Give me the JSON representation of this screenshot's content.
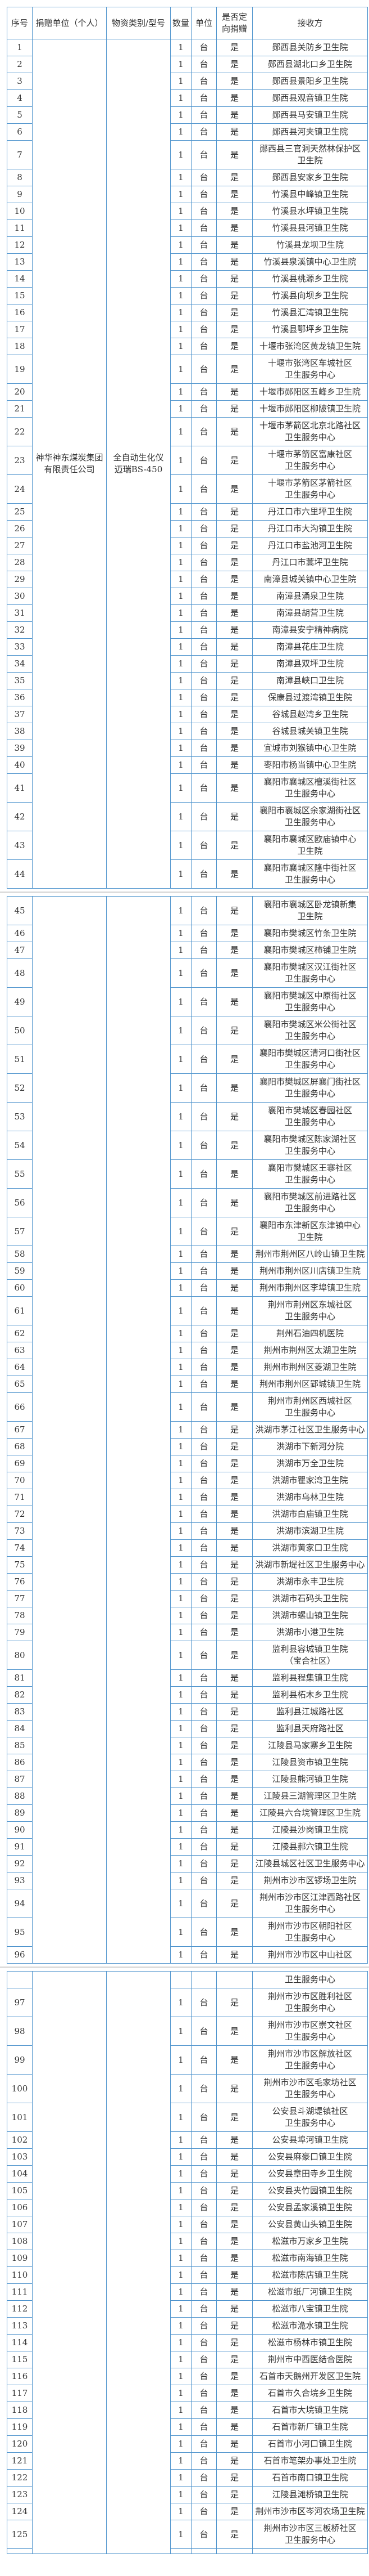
{
  "colors": {
    "table_border": "#4f94cd",
    "separator_line": "#dcdcdc",
    "text": "#333333",
    "cell_background": "#ffffff"
  },
  "table": {
    "headers": [
      "序号",
      "捐赠单位（个人）",
      "物资类别/型号",
      "数量",
      "单位",
      "是否定\n向捐赠",
      "接收方"
    ],
    "row_fields": [
      "serial",
      "quantity",
      "unit",
      "directed",
      "recipient"
    ],
    "sections": [
      {
        "donor": "神华神东煤炭集团\n有限责任公司",
        "material": "全自动生化仪\n迈瑞BS-450",
        "rows": [
          [
            "1",
            "1",
            "台",
            "是",
            "郧西县关防乡卫生院"
          ],
          [
            "2",
            "1",
            "台",
            "是",
            "郧西县湖北口乡卫生院"
          ],
          [
            "3",
            "1",
            "台",
            "是",
            "郧西县景阳乡卫生院"
          ],
          [
            "4",
            "1",
            "台",
            "是",
            "郧西县观音镇卫生院"
          ],
          [
            "5",
            "1",
            "台",
            "是",
            "郧西县马安镇卫生院"
          ],
          [
            "6",
            "1",
            "台",
            "是",
            "郧西县河夹镇卫生院"
          ],
          [
            "7",
            "1",
            "台",
            "是",
            "郧西县三官洞天然林保护区\n卫生院"
          ],
          [
            "8",
            "1",
            "台",
            "是",
            "郧西县安家乡卫生院"
          ],
          [
            "9",
            "1",
            "台",
            "是",
            "竹溪县中峰镇卫生院"
          ],
          [
            "10",
            "1",
            "台",
            "是",
            "竹溪县水坪镇卫生院"
          ],
          [
            "11",
            "1",
            "台",
            "是",
            "竹溪县县河镇卫生院"
          ],
          [
            "12",
            "1",
            "台",
            "是",
            "竹溪县龙坝卫生院"
          ],
          [
            "13",
            "1",
            "台",
            "是",
            "竹溪县泉溪镇中心卫生院"
          ],
          [
            "14",
            "1",
            "台",
            "是",
            "竹溪县桃源乡卫生院"
          ],
          [
            "15",
            "1",
            "台",
            "是",
            "竹溪县向坝乡卫生院"
          ],
          [
            "16",
            "1",
            "台",
            "是",
            "竹溪县汇湾镇卫生院"
          ],
          [
            "17",
            "1",
            "台",
            "是",
            "竹溪县鄂坪乡卫生院"
          ],
          [
            "18",
            "1",
            "台",
            "是",
            "十堰市张湾区黄龙镇卫生院"
          ],
          [
            "19",
            "1",
            "台",
            "是",
            "十堰市张湾区车城社区\n卫生服务中心"
          ],
          [
            "20",
            "1",
            "台",
            "是",
            "十堰市郧阳区五峰乡卫生院"
          ],
          [
            "21",
            "1",
            "台",
            "是",
            "十堰市郧阳区柳陂镇卫生院"
          ],
          [
            "22",
            "1",
            "台",
            "是",
            "十堰市茅箭区北京北路社区\n卫生服务中心"
          ],
          [
            "23",
            "1",
            "台",
            "是",
            "十堰市茅箭区富康社区\n卫生服务中心"
          ],
          [
            "24",
            "1",
            "台",
            "是",
            "十堰市茅箭区茅箭社区\n卫生服务中心"
          ],
          [
            "25",
            "1",
            "台",
            "是",
            "丹江口市六里坪卫生院"
          ],
          [
            "26",
            "1",
            "台",
            "是",
            "丹江口市大沟镇卫生院"
          ],
          [
            "27",
            "1",
            "台",
            "是",
            "丹江口市盐池河卫生院"
          ],
          [
            "28",
            "1",
            "台",
            "是",
            "丹江口市蒿坪卫生院"
          ],
          [
            "29",
            "1",
            "台",
            "是",
            "南漳县城关镇中心卫生院"
          ],
          [
            "30",
            "1",
            "台",
            "是",
            "南漳县涌泉卫生院"
          ],
          [
            "31",
            "1",
            "台",
            "是",
            "南漳县胡营卫生院"
          ],
          [
            "32",
            "1",
            "台",
            "是",
            "南漳县安宁精神病院"
          ],
          [
            "33",
            "1",
            "台",
            "是",
            "南漳县花庄卫生院"
          ],
          [
            "34",
            "1",
            "台",
            "是",
            "南漳县双坪卫生院"
          ],
          [
            "35",
            "1",
            "台",
            "是",
            "南漳县峡口卫生院"
          ],
          [
            "36",
            "1",
            "台",
            "是",
            "保康县过渡湾镇卫生院"
          ],
          [
            "37",
            "1",
            "台",
            "是",
            "谷城县赵湾乡卫生院"
          ],
          [
            "38",
            "1",
            "台",
            "是",
            "谷城县城关镇卫生院"
          ],
          [
            "39",
            "1",
            "台",
            "是",
            "宜城市刘猴镇中心卫生院"
          ],
          [
            "40",
            "1",
            "台",
            "是",
            "枣阳市杨当镇中心卫生院"
          ],
          [
            "41",
            "1",
            "台",
            "是",
            "襄阳市襄城区檀溪街社区\n卫生服务中心"
          ],
          [
            "42",
            "1",
            "台",
            "是",
            "襄阳市襄城区余家湖街社区\n卫生服务中心"
          ],
          [
            "43",
            "1",
            "台",
            "是",
            "襄阳市襄城区欧庙镇中心\n卫生院"
          ],
          [
            "44",
            "1",
            "台",
            "是",
            "襄阳市襄城区隆中街社区\n卫生服务中心"
          ]
        ]
      },
      {
        "donor": "",
        "material": "",
        "rows": [
          [
            "45",
            "1",
            "台",
            "是",
            "襄阳市襄城区卧龙镇新集\n卫生院"
          ],
          [
            "46",
            "1",
            "台",
            "是",
            "襄阳市樊城区竹条卫生院"
          ],
          [
            "47",
            "1",
            "台",
            "是",
            "襄阳市樊城区柿铺卫生院"
          ],
          [
            "48",
            "1",
            "台",
            "是",
            "襄阳市樊城区汉江街社区\n卫生服务中心"
          ],
          [
            "49",
            "1",
            "台",
            "是",
            "襄阳市樊城区中原街社区\n卫生服务中心"
          ],
          [
            "50",
            "1",
            "台",
            "是",
            "襄阳市樊城区米公街社区\n卫生服务中心"
          ],
          [
            "51",
            "1",
            "台",
            "是",
            "襄阳市樊城区清河口街社区\n卫生服务中心"
          ],
          [
            "52",
            "1",
            "台",
            "是",
            "襄阳市樊城区屏襄门街社区\n卫生服务中心"
          ],
          [
            "53",
            "1",
            "台",
            "是",
            "襄阳市樊城区春园社区\n卫生服务中心"
          ],
          [
            "54",
            "1",
            "台",
            "是",
            "襄阳市樊城区陈家湖社区\n卫生服务中心"
          ],
          [
            "55",
            "1",
            "台",
            "是",
            "襄阳市樊城区王寨社区\n卫生服务中心"
          ],
          [
            "56",
            "1",
            "台",
            "是",
            "襄阳市樊城区前进路社区\n卫生服务中心"
          ],
          [
            "57",
            "1",
            "台",
            "是",
            "襄阳市东津新区东津镇中心\n卫生院"
          ],
          [
            "58",
            "1",
            "台",
            "是",
            "荆州市荆州区八岭山镇卫生院"
          ],
          [
            "59",
            "1",
            "台",
            "是",
            "荆州市荆州区川店镇卫生院"
          ],
          [
            "60",
            "1",
            "台",
            "是",
            "荆州市荆州区李埠镇卫生院"
          ],
          [
            "61",
            "1",
            "台",
            "是",
            "荆州市荆州区东城社区\n卫生服务中心"
          ],
          [
            "62",
            "1",
            "台",
            "是",
            "荆州石油四机医院"
          ],
          [
            "63",
            "1",
            "台",
            "是",
            "荆州市荆州区太湖卫生院"
          ],
          [
            "64",
            "1",
            "台",
            "是",
            "荆州市荆州区菱湖卫生院"
          ],
          [
            "65",
            "1",
            "台",
            "是",
            "荆州市荆州区郢城镇卫生院"
          ],
          [
            "66",
            "1",
            "台",
            "是",
            "荆州市荆州区西城社区\n卫生服务中心"
          ],
          [
            "67",
            "1",
            "台",
            "是",
            "洪湖市茅江社区卫生服务中心"
          ],
          [
            "68",
            "1",
            "台",
            "是",
            "洪湖市下新河分院"
          ],
          [
            "69",
            "1",
            "台",
            "是",
            "洪湖市万全卫生院"
          ],
          [
            "70",
            "1",
            "台",
            "是",
            "洪湖市瞿家湾卫生院"
          ],
          [
            "71",
            "1",
            "台",
            "是",
            "洪湖市乌林卫生院"
          ],
          [
            "72",
            "1",
            "台",
            "是",
            "洪湖市白庙镇卫生院"
          ],
          [
            "73",
            "1",
            "台",
            "是",
            "洪湖市滨湖卫生院"
          ],
          [
            "74",
            "1",
            "台",
            "是",
            "洪湖市黄家口卫生院"
          ],
          [
            "75",
            "1",
            "台",
            "是",
            "洪湖市新堤社区卫生服务中心"
          ],
          [
            "76",
            "1",
            "台",
            "是",
            "洪湖市永丰卫生院"
          ],
          [
            "77",
            "1",
            "台",
            "是",
            "洪湖市石码头卫生院"
          ],
          [
            "78",
            "1",
            "台",
            "是",
            "洪湖市螺山镇卫生院"
          ],
          [
            "79",
            "1",
            "台",
            "是",
            "洪湖市小港卫生院"
          ],
          [
            "80",
            "1",
            "台",
            "是",
            "监利县容城镇卫生院\n（宝合社区）"
          ],
          [
            "81",
            "1",
            "台",
            "是",
            "监利县程集镇卫生院"
          ],
          [
            "82",
            "1",
            "台",
            "是",
            "监利县柘木乡卫生院"
          ],
          [
            "83",
            "1",
            "台",
            "是",
            "监利县江城路社区"
          ],
          [
            "84",
            "1",
            "台",
            "是",
            "监利县天府路社区"
          ],
          [
            "85",
            "1",
            "台",
            "是",
            "江陵县马家寨乡卫生院"
          ],
          [
            "86",
            "1",
            "台",
            "是",
            "江陵县资市镇卫生院"
          ],
          [
            "87",
            "1",
            "台",
            "是",
            "江陵县熊河镇卫生院"
          ],
          [
            "88",
            "1",
            "台",
            "是",
            "江陵县三湖管理区卫生院"
          ],
          [
            "89",
            "1",
            "台",
            "是",
            "江陵县六合垸管理区卫生院"
          ],
          [
            "90",
            "1",
            "台",
            "是",
            "江陵县沙岗镇卫生院"
          ],
          [
            "91",
            "1",
            "台",
            "是",
            "江陵县郝穴镇卫生院"
          ],
          [
            "92",
            "1",
            "台",
            "是",
            "江陵县城区社区卫生服务中心"
          ],
          [
            "93",
            "1",
            "台",
            "是",
            "荆州市沙市区锣场卫生院"
          ],
          [
            "94",
            "1",
            "台",
            "是",
            "荆州市沙市区江津西路社区\n卫生服务中心"
          ],
          [
            "95",
            "1",
            "台",
            "是",
            "荆州市沙市区朝阳社区\n卫生服务中心"
          ],
          [
            "96",
            "1",
            "台",
            "是",
            "荆州市沙市区中山社区"
          ]
        ]
      },
      {
        "donor": "",
        "material": "",
        "rows": [
          [
            "",
            "",
            "",
            "",
            "卫生服务中心"
          ],
          [
            "97",
            "1",
            "台",
            "是",
            "荆州市沙市区胜利社区\n卫生服务中心"
          ],
          [
            "98",
            "1",
            "台",
            "是",
            "荆州市沙市区崇文社区\n卫生服务中心"
          ],
          [
            "99",
            "1",
            "台",
            "是",
            "荆州市沙市区解放社区\n卫生服务中心"
          ],
          [
            "100",
            "1",
            "台",
            "是",
            "荆州市沙市区毛家坊社区\n卫生服务中心"
          ],
          [
            "101",
            "1",
            "台",
            "是",
            "公安县斗湖堤镇社区\n卫生服务中心"
          ],
          [
            "102",
            "1",
            "台",
            "是",
            "公安县埠河镇卫生院"
          ],
          [
            "103",
            "1",
            "台",
            "是",
            "公安县麻豪口镇卫生院"
          ],
          [
            "104",
            "1",
            "台",
            "是",
            "公安县章田寺乡卫生院"
          ],
          [
            "105",
            "1",
            "台",
            "是",
            "公安县夹竹园镇卫生院"
          ],
          [
            "106",
            "1",
            "台",
            "是",
            "公安县孟家溪镇卫生院"
          ],
          [
            "107",
            "1",
            "台",
            "是",
            "公安县黄山头镇卫生院"
          ],
          [
            "108",
            "1",
            "台",
            "是",
            "松滋市万家乡卫生院"
          ],
          [
            "109",
            "1",
            "台",
            "是",
            "松滋市南海镇卫生院"
          ],
          [
            "110",
            "1",
            "台",
            "是",
            "松滋市陈店镇卫生院"
          ],
          [
            "111",
            "1",
            "台",
            "是",
            "松滋市纸厂河镇卫生院"
          ],
          [
            "112",
            "1",
            "台",
            "是",
            "松滋市八宝镇卫生院"
          ],
          [
            "113",
            "1",
            "台",
            "是",
            "松滋市洈水镇卫生院"
          ],
          [
            "114",
            "1",
            "台",
            "是",
            "松滋市杨林市镇卫生院"
          ],
          [
            "115",
            "1",
            "台",
            "是",
            "荆州市中西医结合医院"
          ],
          [
            "116",
            "1",
            "台",
            "是",
            "石首市天鹅州开发区卫生院"
          ],
          [
            "117",
            "1",
            "台",
            "是",
            "石首市久合垸乡卫生院"
          ],
          [
            "118",
            "1",
            "台",
            "是",
            "石首市大垸镇卫生院"
          ],
          [
            "119",
            "1",
            "台",
            "是",
            "石首市新厂镇卫生院"
          ],
          [
            "120",
            "1",
            "台",
            "是",
            "石首市小河口镇卫生院"
          ],
          [
            "121",
            "1",
            "台",
            "是",
            "石首市笔架办事处卫生院"
          ],
          [
            "122",
            "1",
            "台",
            "是",
            "石首市南口镇卫生院"
          ],
          [
            "123",
            "1",
            "台",
            "是",
            "江陵县滩桥镇卫生院"
          ],
          [
            "124",
            "1",
            "台",
            "是",
            "荆州市沙市区岑河农场卫生院"
          ],
          [
            "125",
            "1",
            "台",
            "是",
            "荆州市沙市区三板桥社区\n卫生服务中心"
          ],
          [
            "",
            "",
            "",
            "",
            ""
          ]
        ]
      }
    ]
  }
}
